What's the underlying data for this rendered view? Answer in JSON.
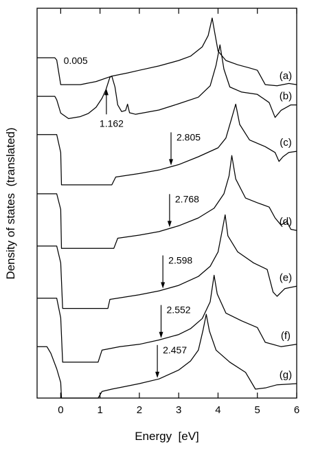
{
  "chart_data": {
    "type": "line",
    "xlabel": "Energy  [eV]",
    "ylabel": "Density of states  (translated)",
    "xlim": [
      -0.6,
      6.0
    ],
    "ylim": [
      0,
      100
    ],
    "x_ticks": [
      "0",
      "1",
      "2",
      "3",
      "4",
      "5",
      "6"
    ],
    "x_tick_values": [
      0,
      1,
      2,
      3,
      4,
      5,
      6
    ],
    "grid": false,
    "legend": "none",
    "series": [
      {
        "label": "(a)",
        "points": [
          [
            -0.6,
            87.3
          ],
          [
            -0.15,
            87.3
          ],
          [
            -0.1,
            86.7
          ],
          [
            0,
            80.4
          ],
          [
            0.5,
            80.4
          ],
          [
            0.9,
            81.2
          ],
          [
            1.3,
            82.6
          ],
          [
            1.7,
            83.4
          ],
          [
            2.0,
            84.1
          ],
          [
            2.5,
            85.2
          ],
          [
            3.0,
            86.6
          ],
          [
            3.3,
            87.7
          ],
          [
            3.6,
            90.1
          ],
          [
            3.75,
            93.0
          ],
          [
            3.85,
            97.5
          ],
          [
            3.92,
            93.5
          ],
          [
            4.0,
            89.0
          ],
          [
            4.2,
            86.6
          ],
          [
            4.5,
            85.5
          ],
          [
            4.8,
            84.7
          ],
          [
            5.0,
            84.1
          ],
          [
            5.2,
            80.4
          ],
          [
            5.5,
            80.1
          ],
          [
            5.8,
            80.7
          ],
          [
            6.0,
            80.4
          ]
        ],
        "annotation": {
          "text": "0.005",
          "x": 0.005
        }
      },
      {
        "label": "(b)",
        "points": [
          [
            -0.6,
            77.4
          ],
          [
            -0.15,
            77.4
          ],
          [
            -0.1,
            76.5
          ],
          [
            0,
            73.1
          ],
          [
            0.2,
            71.7
          ],
          [
            0.5,
            72.2
          ],
          [
            0.7,
            73.0
          ],
          [
            0.9,
            74.6
          ],
          [
            1.05,
            76.9
          ],
          [
            1.15,
            79.1
          ],
          [
            1.25,
            82.3
          ],
          [
            1.3,
            82.6
          ],
          [
            1.38,
            79.8
          ],
          [
            1.45,
            75.2
          ],
          [
            1.55,
            73.5
          ],
          [
            1.65,
            73.8
          ],
          [
            1.7,
            75.4
          ],
          [
            1.75,
            73.2
          ],
          [
            1.9,
            72.8
          ],
          [
            2.5,
            73.9
          ],
          [
            3.0,
            75.5
          ],
          [
            3.5,
            77.2
          ],
          [
            3.8,
            80.1
          ],
          [
            3.95,
            85.4
          ],
          [
            4.05,
            90.6
          ],
          [
            4.15,
            84.4
          ],
          [
            4.3,
            79.8
          ],
          [
            4.6,
            78.5
          ],
          [
            5.0,
            77.9
          ],
          [
            5.3,
            75.8
          ],
          [
            5.45,
            72.0
          ],
          [
            5.6,
            73.8
          ],
          [
            5.85,
            75.2
          ],
          [
            6.0,
            75.2
          ]
        ],
        "annotation": {
          "text": "1.162",
          "x": 1.162
        }
      },
      {
        "label": "(c)",
        "points": [
          [
            -0.6,
            67.6
          ],
          [
            -0.1,
            67.6
          ],
          [
            0,
            63.0
          ],
          [
            0.02,
            54.7
          ],
          [
            1.3,
            54.7
          ],
          [
            1.4,
            56.7
          ],
          [
            2.0,
            57.6
          ],
          [
            2.5,
            58.5
          ],
          [
            3.0,
            59.9
          ],
          [
            3.5,
            61.9
          ],
          [
            4.0,
            64.2
          ],
          [
            4.2,
            66.7
          ],
          [
            4.35,
            71.9
          ],
          [
            4.45,
            75.4
          ],
          [
            4.55,
            70.2
          ],
          [
            4.8,
            66.2
          ],
          [
            5.2,
            64.5
          ],
          [
            5.45,
            63.0
          ],
          [
            5.55,
            60.7
          ],
          [
            5.65,
            61.9
          ],
          [
            5.8,
            63.0
          ],
          [
            6.0,
            63.3
          ]
        ],
        "annotation": {
          "text": "2.805",
          "x": 2.805
        }
      },
      {
        "label": "(d)",
        "points": [
          [
            -0.6,
            52.4
          ],
          [
            -0.1,
            52.4
          ],
          [
            0,
            48.4
          ],
          [
            0.02,
            38.4
          ],
          [
            1.35,
            38.4
          ],
          [
            1.45,
            41.0
          ],
          [
            2.0,
            41.8
          ],
          [
            2.5,
            42.7
          ],
          [
            3.0,
            44.2
          ],
          [
            3.5,
            46.2
          ],
          [
            3.9,
            48.7
          ],
          [
            4.15,
            52.4
          ],
          [
            4.28,
            57.0
          ],
          [
            4.35,
            62.2
          ],
          [
            4.45,
            56.2
          ],
          [
            4.7,
            51.3
          ],
          [
            5.0,
            50.1
          ],
          [
            5.3,
            49.0
          ],
          [
            5.45,
            46.2
          ],
          [
            5.6,
            44.4
          ],
          [
            5.75,
            45.3
          ],
          [
            5.85,
            43.3
          ],
          [
            6.0,
            43.0
          ]
        ],
        "annotation": {
          "text": "2.768",
          "x": 2.768
        }
      },
      {
        "label": "(e)",
        "points": [
          [
            -0.6,
            39.0
          ],
          [
            -0.1,
            39.0
          ],
          [
            0,
            34.7
          ],
          [
            0.05,
            23.0
          ],
          [
            1.2,
            23.0
          ],
          [
            1.25,
            25.3
          ],
          [
            2.0,
            26.5
          ],
          [
            2.5,
            27.5
          ],
          [
            3.0,
            28.9
          ],
          [
            3.5,
            31.2
          ],
          [
            3.8,
            33.8
          ],
          [
            4.0,
            37.5
          ],
          [
            4.1,
            42.7
          ],
          [
            4.18,
            47.0
          ],
          [
            4.25,
            41.6
          ],
          [
            4.5,
            37.5
          ],
          [
            4.9,
            34.7
          ],
          [
            5.25,
            33.0
          ],
          [
            5.4,
            27.2
          ],
          [
            5.5,
            26.1
          ],
          [
            5.7,
            28.1
          ],
          [
            6.0,
            28.7
          ]
        ],
        "annotation": {
          "text": "2.598",
          "x": 2.598
        }
      },
      {
        "label": "(f)",
        "points": [
          [
            -0.6,
            25.6
          ],
          [
            -0.1,
            25.6
          ],
          [
            0,
            20.6
          ],
          [
            0.05,
            9.2
          ],
          [
            0.95,
            9.2
          ],
          [
            1.05,
            12.3
          ],
          [
            1.5,
            13.2
          ],
          [
            2.0,
            13.8
          ],
          [
            2.5,
            14.9
          ],
          [
            3.0,
            16.3
          ],
          [
            3.3,
            17.8
          ],
          [
            3.6,
            20.4
          ],
          [
            3.8,
            24.7
          ],
          [
            3.9,
            31.5
          ],
          [
            3.98,
            26.7
          ],
          [
            4.2,
            21.8
          ],
          [
            4.6,
            19.8
          ],
          [
            5.0,
            18.1
          ],
          [
            5.2,
            14.3
          ],
          [
            5.6,
            13.2
          ],
          [
            6.0,
            13.8
          ]
        ],
        "annotation": {
          "text": "2.552",
          "x": 2.552
        }
      },
      {
        "label": "(g)",
        "points": [
          [
            -0.6,
            13.2
          ],
          [
            -0.35,
            13.2
          ],
          [
            -0.25,
            11.5
          ],
          [
            -0.1,
            7.5
          ],
          [
            0,
            4.0
          ],
          [
            0.02,
            0
          ],
          [
            0.95,
            0
          ],
          [
            1.05,
            1.7
          ],
          [
            1.3,
            2.3
          ],
          [
            1.6,
            2.9
          ],
          [
            2.0,
            3.7
          ],
          [
            2.5,
            4.9
          ],
          [
            3.0,
            7.2
          ],
          [
            3.3,
            9.5
          ],
          [
            3.5,
            12.3
          ],
          [
            3.62,
            17.5
          ],
          [
            3.7,
            21.5
          ],
          [
            3.78,
            17.2
          ],
          [
            3.95,
            12.3
          ],
          [
            4.3,
            9.2
          ],
          [
            4.7,
            6.6
          ],
          [
            4.95,
            2.3
          ],
          [
            5.2,
            2.6
          ],
          [
            5.5,
            3.4
          ],
          [
            6.0,
            3.7
          ]
        ],
        "annotation": {
          "text": "2.457",
          "x": 2.457
        }
      }
    ]
  }
}
